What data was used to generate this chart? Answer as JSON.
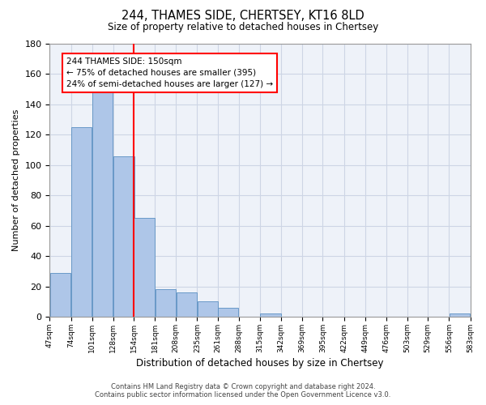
{
  "title": "244, THAMES SIDE, CHERTSEY, KT16 8LD",
  "subtitle": "Size of property relative to detached houses in Chertsey",
  "xlabel": "Distribution of detached houses by size in Chertsey",
  "ylabel": "Number of detached properties",
  "bar_left_edges": [
    47,
    74,
    101,
    128,
    154,
    181,
    208,
    235,
    261,
    288,
    315,
    342,
    369,
    395,
    422,
    449,
    476,
    503,
    529,
    556
  ],
  "bar_widths": [
    27,
    27,
    27,
    27,
    27,
    27,
    27,
    27,
    27,
    27,
    27,
    27,
    27,
    27,
    27,
    27,
    27,
    27,
    27,
    27
  ],
  "bar_heights": [
    29,
    125,
    150,
    106,
    65,
    18,
    16,
    10,
    6,
    0,
    2,
    0,
    0,
    0,
    0,
    0,
    0,
    0,
    0,
    2
  ],
  "bar_color": "#aec6e8",
  "bar_edgecolor": "#5a8fc2",
  "tick_labels": [
    "47sqm",
    "74sqm",
    "101sqm",
    "128sqm",
    "154sqm",
    "181sqm",
    "208sqm",
    "235sqm",
    "261sqm",
    "288sqm",
    "315sqm",
    "342sqm",
    "369sqm",
    "395sqm",
    "422sqm",
    "449sqm",
    "476sqm",
    "503sqm",
    "529sqm",
    "556sqm",
    "583sqm"
  ],
  "tick_positions": [
    47,
    74,
    101,
    128,
    154,
    181,
    208,
    235,
    261,
    288,
    315,
    342,
    369,
    395,
    422,
    449,
    476,
    503,
    529,
    556,
    583
  ],
  "ylim": [
    0,
    180
  ],
  "yticks": [
    0,
    20,
    40,
    60,
    80,
    100,
    120,
    140,
    160,
    180
  ],
  "property_line_x": 154,
  "annotation_line1": "244 THAMES SIDE: 150sqm",
  "annotation_line2": "← 75% of detached houses are smaller (395)",
  "annotation_line3": "24% of semi-detached houses are larger (127) →",
  "grid_color": "#cdd5e5",
  "background_color": "#eef2f9",
  "footer_line1": "Contains HM Land Registry data © Crown copyright and database right 2024.",
  "footer_line2": "Contains public sector information licensed under the Open Government Licence v3.0."
}
